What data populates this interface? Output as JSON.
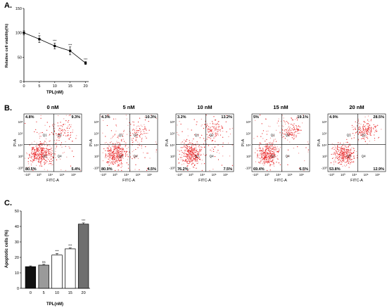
{
  "panels": {
    "a_label": "A.",
    "b_label": "B.",
    "c_label": "C."
  },
  "colors": {
    "dots": "#e8191b",
    "dots_light": "#f28a8a",
    "axis": "#000000",
    "quad_line": "#000000"
  },
  "chart_data": [
    {
      "type": "line",
      "panel": "A",
      "x": [
        0,
        5,
        10,
        15,
        20
      ],
      "y": [
        100,
        87,
        73,
        63,
        38
      ],
      "error": [
        4,
        7,
        6,
        8,
        3
      ],
      "significance": [
        "",
        "*",
        "***",
        "***",
        "***"
      ],
      "xlabel": "TPL(nM)",
      "ylabel": "Relative cell viability(%)",
      "xticks": [
        "0",
        "5",
        "10",
        "15",
        "20"
      ],
      "yticks": [
        "0",
        "50",
        "100",
        "150"
      ],
      "xlim": [
        0,
        21
      ],
      "ylim": [
        0,
        150
      ],
      "grid": false
    },
    {
      "type": "scatter",
      "panel": "B",
      "xlabel": "FITC-A",
      "ylabel": "PI-A",
      "quadrant_labels": [
        "Q1",
        "Q2",
        "Q3",
        "Q4"
      ],
      "plots": [
        {
          "title": "0 nM",
          "ul": "4.8%",
          "ur": "9.3%",
          "ll": "80.5%",
          "lr": "5.4%",
          "xticks": [
            "-10³",
            "10³",
            "10⁴",
            "10⁵",
            "10⁶"
          ],
          "yticks": [
            "-10³",
            "10³",
            "10⁴",
            "10⁵",
            "10⁶"
          ]
        },
        {
          "title": "5 nM",
          "ul": "4.3%",
          "ur": "10.3%",
          "ll": "80.9%",
          "lr": "4.5%",
          "xticks": [
            "-10³",
            "10³",
            "10⁴",
            "10⁵",
            "10⁶"
          ],
          "yticks": [
            "-10³",
            "10³",
            "10⁴",
            "10⁵",
            "10⁶"
          ]
        },
        {
          "title": "10 nM",
          "ul": "3.2%",
          "ur": "13.2%",
          "ll": "76.2%",
          "lr": "7.5%",
          "xticks": [
            "-10³",
            "10³",
            "10⁴",
            "10⁵",
            "10⁶"
          ],
          "yticks": [
            "-10³",
            "10³",
            "10⁴",
            "10⁵",
            "10⁶"
          ]
        },
        {
          "title": "15 nM",
          "ul": "5%",
          "ur": "19.1%",
          "ll": "69.4%",
          "lr": "6.5%",
          "xticks": [
            "-10³",
            "10³",
            "10⁴",
            "10⁵",
            "10⁶"
          ],
          "yticks": [
            "-10³",
            "10³",
            "10⁴",
            "10⁵",
            "10⁶"
          ]
        },
        {
          "title": "20 nM",
          "ul": "4.9%",
          "ur": "28.5%",
          "ll": "53.8%",
          "lr": "12.9%",
          "xticks": [
            "-10³",
            "10³",
            "10⁴",
            "10⁵",
            "10⁶"
          ],
          "yticks": [
            "-10³",
            "10³",
            "10⁴",
            "10⁵",
            "10⁶"
          ]
        }
      ]
    },
    {
      "type": "bar",
      "panel": "C",
      "categories": [
        "0",
        "5",
        "10",
        "15",
        "20"
      ],
      "values": [
        14,
        15,
        21.5,
        25.5,
        41.5
      ],
      "error": [
        0.5,
        0.5,
        1,
        0.6,
        0.8
      ],
      "significance": [
        "",
        "ns",
        "***",
        "***",
        "***"
      ],
      "bar_colors": [
        "#111111",
        "#9a9a9a",
        "#ffffff",
        "#ffffff",
        "#6f6f6f"
      ],
      "xlabel": "TPL(nM)",
      "ylabel": "Apoptotic cells (%)",
      "yticks": [
        "0",
        "10",
        "20",
        "30",
        "40",
        "50"
      ],
      "ylim": [
        0,
        50
      ],
      "grid": false
    }
  ]
}
